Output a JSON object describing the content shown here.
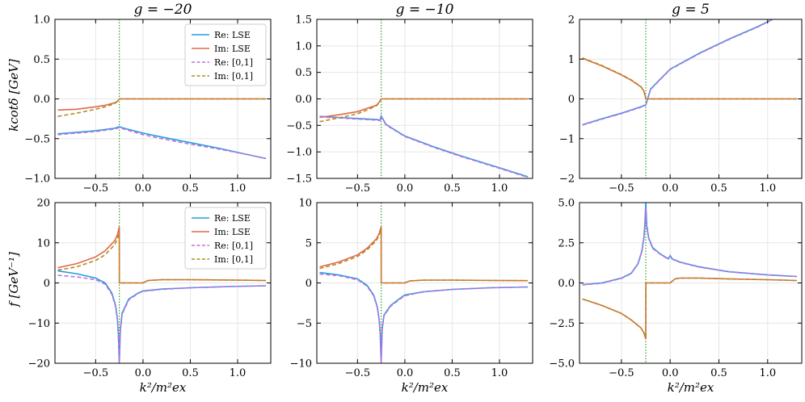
{
  "figure": {
    "xlabel": "k²/m²ex",
    "ylabel_top": "kcotδ [GeV]",
    "ylabel_bottom": "f [GeV⁻¹]",
    "titles": [
      "g = −20",
      "g = −10",
      "g = 5"
    ]
  },
  "legend": {
    "entries": [
      {
        "label": "Re: LSE",
        "color": "#1f9fe0",
        "style": "solid"
      },
      {
        "label": "Im: LSE",
        "color": "#e06848",
        "style": "solid"
      },
      {
        "label": "Re: [0,1]",
        "color": "#c86cdc",
        "style": "dashed"
      },
      {
        "label": "Im: [0,1]",
        "color": "#b08a20",
        "style": "dashed"
      }
    ]
  },
  "colors": {
    "re_lse": "#1f9fe0",
    "im_lse": "#e06848",
    "re_01": "#c86cdc",
    "im_01": "#b08a20",
    "threshold": "#2ca02c",
    "grid": "#e6e6e6"
  },
  "chart_data": [
    {
      "type": "line",
      "title": "g = −20",
      "ylabel": "kcotδ [GeV]",
      "xlabel": "",
      "xlim": [
        -0.93,
        1.35
      ],
      "ylim": [
        -1.0,
        1.0
      ],
      "xticks": [
        -0.5,
        0.0,
        0.5,
        1.0
      ],
      "xtick_labels": [
        "−0.5",
        "0.0",
        "0.5",
        "1.0"
      ],
      "yticks": [
        -1.0,
        -0.5,
        0.0,
        0.5,
        1.0
      ],
      "ytick_labels": [
        "−1.0",
        "−0.5",
        "0.0",
        "0.5",
        "1.0"
      ],
      "threshold_x": -0.25,
      "legend": true,
      "legend_position": "top-right",
      "grid": true,
      "series": [
        {
          "name": "Re: LSE",
          "x": [
            -0.9,
            -0.7,
            -0.5,
            -0.3,
            -0.25,
            -0.2,
            0.0,
            0.2,
            0.5,
            0.8,
            1.1,
            1.3
          ],
          "y": [
            -0.44,
            -0.42,
            -0.4,
            -0.37,
            -0.35,
            -0.37,
            -0.43,
            -0.48,
            -0.55,
            -0.62,
            -0.7,
            -0.75
          ]
        },
        {
          "name": "Im: LSE",
          "x": [
            -0.9,
            -0.7,
            -0.5,
            -0.4,
            -0.3,
            -0.27,
            -0.25,
            0.0,
            0.5,
            1.0,
            1.3
          ],
          "y": [
            -0.14,
            -0.13,
            -0.1,
            -0.08,
            -0.05,
            -0.03,
            0.0,
            0.0,
            0.0,
            0.0,
            0.0
          ]
        },
        {
          "name": "Re: [0,1]",
          "x": [
            -0.9,
            -0.7,
            -0.5,
            -0.3,
            -0.25,
            -0.2,
            0.0,
            0.2,
            0.5,
            0.8,
            1.1,
            1.3
          ],
          "y": [
            -0.45,
            -0.43,
            -0.41,
            -0.38,
            -0.36,
            -0.38,
            -0.45,
            -0.5,
            -0.57,
            -0.63,
            -0.7,
            -0.75
          ]
        },
        {
          "name": "Im: [0,1]",
          "x": [
            -0.9,
            -0.7,
            -0.5,
            -0.4,
            -0.3,
            -0.27,
            -0.25,
            0.0,
            0.5,
            1.0,
            1.3
          ],
          "y": [
            -0.22,
            -0.18,
            -0.13,
            -0.1,
            -0.06,
            -0.03,
            0.0,
            0.0,
            0.0,
            0.0,
            0.0
          ]
        }
      ]
    },
    {
      "type": "line",
      "title": "g = −10",
      "ylabel": "",
      "xlabel": "",
      "xlim": [
        -0.93,
        1.35
      ],
      "ylim": [
        -1.5,
        1.5
      ],
      "xticks": [
        -0.5,
        0.0,
        0.5,
        1.0
      ],
      "xtick_labels": [
        "−0.5",
        "0.0",
        "0.5",
        "1.0"
      ],
      "yticks": [
        -1.5,
        -1.0,
        -0.5,
        0.0,
        0.5,
        1.0,
        1.5
      ],
      "ytick_labels": [
        "−1.5",
        "−1.0",
        "−0.5",
        "0.0",
        "0.5",
        "1.0",
        "1.5"
      ],
      "threshold_x": -0.25,
      "legend": false,
      "grid": true,
      "series": [
        {
          "name": "Re: LSE",
          "x": [
            -0.9,
            -0.7,
            -0.5,
            -0.3,
            -0.26,
            -0.25,
            -0.2,
            0.0,
            0.3,
            0.6,
            1.0,
            1.3
          ],
          "y": [
            -0.33,
            -0.35,
            -0.37,
            -0.39,
            -0.4,
            -0.32,
            -0.48,
            -0.7,
            -0.9,
            -1.08,
            -1.3,
            -1.47
          ]
        },
        {
          "name": "Im: LSE",
          "x": [
            -0.9,
            -0.7,
            -0.5,
            -0.4,
            -0.3,
            -0.27,
            -0.25,
            0.0,
            0.5,
            1.0,
            1.3
          ],
          "y": [
            -0.35,
            -0.3,
            -0.24,
            -0.18,
            -0.12,
            -0.06,
            0.0,
            0.0,
            0.0,
            0.0,
            0.0
          ]
        },
        {
          "name": "Re: [0,1]",
          "x": [
            -0.9,
            -0.7,
            -0.5,
            -0.3,
            -0.26,
            -0.25,
            -0.2,
            0.0,
            0.3,
            0.6,
            1.0,
            1.3
          ],
          "y": [
            -0.34,
            -0.36,
            -0.38,
            -0.4,
            -0.41,
            -0.33,
            -0.49,
            -0.71,
            -0.91,
            -1.09,
            -1.31,
            -1.48
          ]
        },
        {
          "name": "Im: [0,1]",
          "x": [
            -0.9,
            -0.7,
            -0.5,
            -0.4,
            -0.3,
            -0.27,
            -0.25,
            0.0,
            0.5,
            1.0,
            1.3
          ],
          "y": [
            -0.43,
            -0.36,
            -0.28,
            -0.21,
            -0.13,
            -0.07,
            0.0,
            0.0,
            0.0,
            0.0,
            0.0
          ]
        }
      ]
    },
    {
      "type": "line",
      "title": "g = 5",
      "ylabel": "",
      "xlabel": "",
      "xlim": [
        -0.93,
        1.35
      ],
      "ylim": [
        -2.0,
        2.0
      ],
      "xticks": [
        -0.5,
        0.0,
        0.5,
        1.0
      ],
      "xtick_labels": [
        "−0.5",
        "0.0",
        "0.5",
        "1.0"
      ],
      "yticks": [
        -2,
        -1,
        0,
        1,
        2
      ],
      "ytick_labels": [
        "−2",
        "−1",
        "0",
        "1",
        "2"
      ],
      "threshold_x": -0.25,
      "legend": false,
      "grid": true,
      "series": [
        {
          "name": "Re: LSE",
          "x": [
            -0.9,
            -0.7,
            -0.5,
            -0.3,
            -0.25,
            -0.2,
            0.0,
            0.3,
            0.6,
            0.9,
            1.05
          ],
          "y": [
            -0.65,
            -0.5,
            -0.36,
            -0.2,
            -0.15,
            0.25,
            0.75,
            1.15,
            1.5,
            1.82,
            2.0
          ]
        },
        {
          "name": "Im: LSE",
          "x": [
            -0.9,
            -0.7,
            -0.5,
            -0.4,
            -0.3,
            -0.27,
            -0.25,
            0.0,
            0.5,
            1.0,
            1.3
          ],
          "y": [
            1.02,
            0.83,
            0.6,
            0.47,
            0.3,
            0.2,
            0.0,
            0.0,
            0.0,
            0.0,
            0.0
          ]
        },
        {
          "name": "Re: [0,1]",
          "x": [
            -0.9,
            -0.7,
            -0.5,
            -0.3,
            -0.25,
            -0.2,
            0.0,
            0.3,
            0.6,
            0.9,
            1.05
          ],
          "y": [
            -0.66,
            -0.51,
            -0.37,
            -0.21,
            -0.16,
            0.24,
            0.74,
            1.14,
            1.49,
            1.81,
            2.0
          ]
        },
        {
          "name": "Im: [0,1]",
          "x": [
            -0.9,
            -0.7,
            -0.5,
            -0.4,
            -0.3,
            -0.27,
            -0.25,
            0.0,
            0.5,
            1.0,
            1.3
          ],
          "y": [
            1.03,
            0.84,
            0.61,
            0.48,
            0.31,
            0.21,
            0.0,
            0.0,
            0.0,
            0.0,
            0.0
          ]
        }
      ]
    },
    {
      "type": "line",
      "title": "",
      "ylabel": "f [GeV⁻¹]",
      "xlabel": "k²/m²ex",
      "xlim": [
        -0.93,
        1.35
      ],
      "ylim": [
        -20,
        20
      ],
      "xticks": [
        -0.5,
        0.0,
        0.5,
        1.0
      ],
      "xtick_labels": [
        "−0.5",
        "0.0",
        "0.5",
        "1.0"
      ],
      "yticks": [
        -20,
        -10,
        0,
        10,
        20
      ],
      "ytick_labels": [
        "−20",
        "−10",
        "0",
        "10",
        "20"
      ],
      "threshold_x": -0.25,
      "legend": true,
      "legend_position": "top-right",
      "grid": true,
      "series": [
        {
          "name": "Re: LSE",
          "x": [
            -0.9,
            -0.7,
            -0.5,
            -0.4,
            -0.33,
            -0.29,
            -0.27,
            -0.26,
            -0.25,
            -0.24,
            -0.22,
            -0.15,
            -0.05,
            0.0,
            0.2,
            0.5,
            0.9,
            1.3
          ],
          "y": [
            3.0,
            2.3,
            1.2,
            0.0,
            -2.5,
            -5.5,
            -9.0,
            -13.0,
            -20.0,
            -12.0,
            -7.5,
            -4.0,
            -2.5,
            -2.0,
            -1.5,
            -1.2,
            -0.9,
            -0.7
          ]
        },
        {
          "name": "Im: LSE",
          "x": [
            -0.9,
            -0.7,
            -0.5,
            -0.4,
            -0.3,
            -0.27,
            -0.25,
            -0.249,
            0.0,
            0.05,
            0.2,
            0.5,
            1.0,
            1.3
          ],
          "y": [
            3.8,
            4.8,
            6.5,
            8.0,
            10.5,
            12.0,
            14.0,
            0.0,
            0.0,
            0.6,
            0.8,
            0.8,
            0.7,
            0.6
          ]
        },
        {
          "name": "Re: [0,1]",
          "x": [
            -0.9,
            -0.7,
            -0.5,
            -0.4,
            -0.33,
            -0.29,
            -0.27,
            -0.26,
            -0.25,
            -0.24,
            -0.22,
            -0.15,
            -0.05,
            0.0,
            0.2,
            0.5,
            0.9,
            1.3
          ],
          "y": [
            1.9,
            1.5,
            0.8,
            -0.3,
            -2.8,
            -5.8,
            -9.3,
            -13.3,
            -20.0,
            -12.3,
            -7.8,
            -4.2,
            -2.6,
            -2.1,
            -1.6,
            -1.2,
            -0.9,
            -0.7
          ]
        },
        {
          "name": "Im: [0,1]",
          "x": [
            -0.9,
            -0.7,
            -0.5,
            -0.4,
            -0.3,
            -0.27,
            -0.25,
            -0.249,
            0.0,
            0.05,
            0.2,
            0.5,
            1.0,
            1.3
          ],
          "y": [
            3.2,
            4.0,
            5.6,
            7.0,
            9.5,
            11.0,
            12.5,
            0.0,
            0.0,
            0.6,
            0.8,
            0.8,
            0.7,
            0.6
          ]
        }
      ]
    },
    {
      "type": "line",
      "title": "",
      "ylabel": "",
      "xlabel": "k²/m²ex",
      "xlim": [
        -0.93,
        1.35
      ],
      "ylim": [
        -10,
        10
      ],
      "xticks": [
        -0.5,
        0.0,
        0.5,
        1.0
      ],
      "xtick_labels": [
        "−0.5",
        "0.0",
        "0.5",
        "1.0"
      ],
      "yticks": [
        -10,
        -5,
        0,
        5,
        10
      ],
      "ytick_labels": [
        "−10",
        "−5",
        "0",
        "5",
        "10"
      ],
      "threshold_x": -0.25,
      "legend": false,
      "grid": true,
      "series": [
        {
          "name": "Re: LSE",
          "x": [
            -0.9,
            -0.7,
            -0.5,
            -0.4,
            -0.33,
            -0.29,
            -0.27,
            -0.26,
            -0.25,
            -0.24,
            -0.22,
            -0.15,
            -0.05,
            0.0,
            0.2,
            0.5,
            0.9,
            1.3
          ],
          "y": [
            1.3,
            1.0,
            0.5,
            -0.3,
            -1.5,
            -3.0,
            -4.7,
            -6.5,
            -10.0,
            -5.8,
            -4.0,
            -2.8,
            -1.9,
            -1.5,
            -1.1,
            -0.8,
            -0.6,
            -0.5
          ]
        },
        {
          "name": "Im: LSE",
          "x": [
            -0.9,
            -0.7,
            -0.5,
            -0.4,
            -0.3,
            -0.27,
            -0.25,
            -0.249,
            0.0,
            0.05,
            0.2,
            0.5,
            1.0,
            1.3
          ],
          "y": [
            2.0,
            2.6,
            3.5,
            4.3,
            5.5,
            6.2,
            7.0,
            0.0,
            0.0,
            0.25,
            0.35,
            0.35,
            0.3,
            0.28
          ]
        },
        {
          "name": "Re: [0,1]",
          "x": [
            -0.9,
            -0.7,
            -0.5,
            -0.4,
            -0.33,
            -0.29,
            -0.27,
            -0.26,
            -0.25,
            -0.24,
            -0.22,
            -0.15,
            -0.05,
            0.0,
            0.2,
            0.5,
            0.9,
            1.3
          ],
          "y": [
            1.1,
            0.9,
            0.4,
            -0.4,
            -1.6,
            -3.1,
            -4.8,
            -6.6,
            -10.0,
            -5.9,
            -4.1,
            -2.9,
            -2.0,
            -1.6,
            -1.1,
            -0.8,
            -0.6,
            -0.5
          ]
        },
        {
          "name": "Im: [0,1]",
          "x": [
            -0.9,
            -0.7,
            -0.5,
            -0.4,
            -0.3,
            -0.27,
            -0.25,
            -0.249,
            0.0,
            0.05,
            0.2,
            0.5,
            1.0,
            1.3
          ],
          "y": [
            1.8,
            2.4,
            3.3,
            4.1,
            5.3,
            6.0,
            6.8,
            0.0,
            0.0,
            0.25,
            0.35,
            0.35,
            0.3,
            0.28
          ]
        }
      ]
    },
    {
      "type": "line",
      "title": "",
      "ylabel": "",
      "xlabel": "k²/m²ex",
      "xlim": [
        -0.93,
        1.35
      ],
      "ylim": [
        -5.0,
        5.0
      ],
      "xticks": [
        -0.5,
        0.0,
        0.5,
        1.0
      ],
      "xtick_labels": [
        "−0.5",
        "0.0",
        "0.5",
        "1.0"
      ],
      "yticks": [
        -5.0,
        -2.5,
        0.0,
        2.5,
        5.0
      ],
      "ytick_labels": [
        "−5.0",
        "−2.5",
        "0.0",
        "2.5",
        "5.0"
      ],
      "threshold_x": -0.25,
      "legend": false,
      "grid": true,
      "series": [
        {
          "name": "Re: LSE",
          "x": [
            -0.9,
            -0.7,
            -0.5,
            -0.4,
            -0.33,
            -0.29,
            -0.27,
            -0.26,
            -0.25,
            -0.24,
            -0.22,
            -0.18,
            -0.1,
            -0.02,
            0.0,
            0.02,
            0.1,
            0.3,
            0.6,
            1.0,
            1.3
          ],
          "y": [
            -0.1,
            0.0,
            0.3,
            0.6,
            1.2,
            2.0,
            2.8,
            3.6,
            5.0,
            3.6,
            2.8,
            2.2,
            1.8,
            1.5,
            1.7,
            1.5,
            1.3,
            1.0,
            0.7,
            0.5,
            0.4
          ]
        },
        {
          "name": "Im: LSE",
          "x": [
            -0.9,
            -0.7,
            -0.5,
            -0.4,
            -0.3,
            -0.27,
            -0.25,
            -0.249,
            0.0,
            0.05,
            0.1,
            0.3,
            0.6,
            1.0,
            1.3
          ],
          "y": [
            -1.0,
            -1.4,
            -1.9,
            -2.3,
            -2.8,
            -3.1,
            -3.5,
            0.0,
            0.0,
            0.25,
            0.3,
            0.3,
            0.25,
            0.2,
            0.15
          ]
        },
        {
          "name": "Re: [0,1]",
          "x": [
            -0.9,
            -0.7,
            -0.5,
            -0.4,
            -0.33,
            -0.29,
            -0.27,
            -0.26,
            -0.25,
            -0.24,
            -0.22,
            -0.18,
            -0.1,
            -0.02,
            0.0,
            0.02,
            0.1,
            0.3,
            0.6,
            1.0,
            1.3
          ],
          "y": [
            -0.12,
            -0.02,
            0.28,
            0.58,
            1.18,
            1.95,
            2.75,
            3.5,
            4.7,
            3.5,
            2.75,
            2.15,
            1.78,
            1.48,
            1.68,
            1.48,
            1.28,
            0.98,
            0.7,
            0.5,
            0.4
          ]
        },
        {
          "name": "Im: [0,1]",
          "x": [
            -0.9,
            -0.7,
            -0.5,
            -0.4,
            -0.3,
            -0.27,
            -0.25,
            -0.249,
            0.0,
            0.05,
            0.1,
            0.3,
            0.6,
            1.0,
            1.3
          ],
          "y": [
            -1.0,
            -1.4,
            -1.9,
            -2.3,
            -2.8,
            -3.1,
            -3.4,
            0.0,
            0.0,
            0.25,
            0.3,
            0.3,
            0.25,
            0.2,
            0.15
          ]
        }
      ]
    }
  ]
}
